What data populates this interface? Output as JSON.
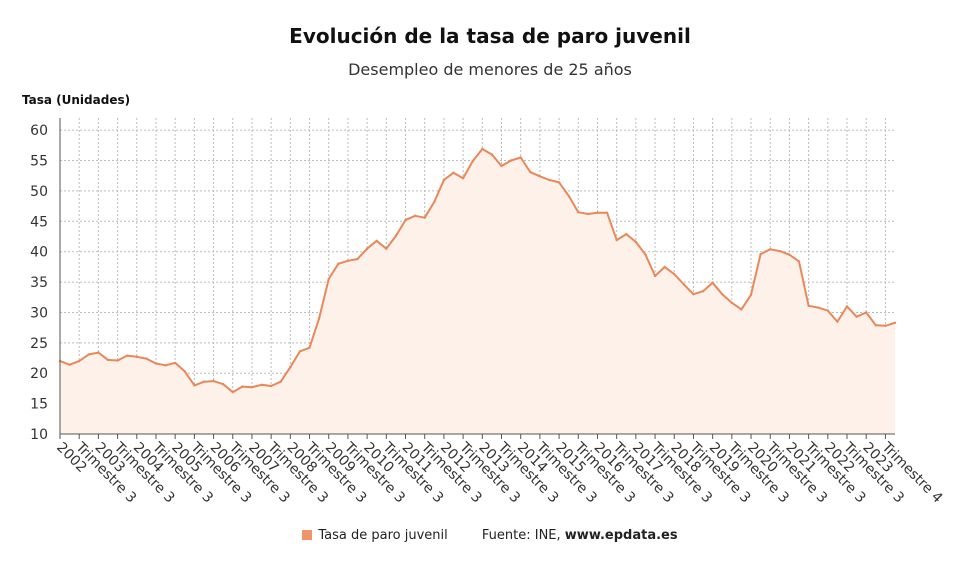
{
  "title": "Evolución de la tasa de paro juvenil",
  "subtitle": "Desempleo de menores de 25 años",
  "legend_label": "Tasa de paro juvenil",
  "source_prefix": "Fuente: INE,",
  "source_site": "www.epdata.es",
  "colors": {
    "line": "#e8885a",
    "fill": "#fdf1ea",
    "grid": "#bbbbbb"
  },
  "chart_data": {
    "type": "area",
    "ylabel": "Tasa (Unidades)",
    "ylim": [
      10,
      62
    ],
    "yticks": [
      10,
      15,
      20,
      25,
      30,
      35,
      40,
      45,
      50,
      55,
      60
    ],
    "grid": true,
    "legend_position": "bottom",
    "xtick_labels": [
      "2002",
      "Trimestre 3",
      "2003",
      "Trimestre 3",
      "2004",
      "Trimestre 3",
      "2005",
      "Trimestre 3",
      "2006",
      "Trimestre 3",
      "2007",
      "Trimestre 3",
      "2008",
      "Trimestre 3",
      "2009",
      "Trimestre 3",
      "2010",
      "Trimestre 3",
      "2011",
      "Trimestre 3",
      "2012",
      "Trimestre 3",
      "2013",
      "Trimestre 3",
      "2014",
      "Trimestre 3",
      "2015",
      "Trimestre 3",
      "2016",
      "Trimestre 3",
      "2017",
      "Trimestre 3",
      "2018",
      "Trimestre 3",
      "2019",
      "Trimestre 3",
      "2020",
      "Trimestre 3",
      "2021",
      "Trimestre 3",
      "2022",
      "Trimestre 3",
      "2023",
      "Trimestre 4"
    ],
    "series": [
      {
        "name": "Tasa de paro juvenil",
        "values": [
          22.0,
          21.4,
          22.0,
          23.1,
          23.4,
          22.2,
          22.1,
          22.9,
          22.7,
          22.4,
          21.6,
          21.3,
          21.7,
          20.3,
          18.0,
          18.6,
          18.7,
          18.2,
          16.9,
          17.8,
          17.7,
          18.1,
          17.9,
          18.6,
          21.0,
          23.6,
          24.2,
          29.0,
          35.5,
          38.0,
          38.5,
          38.8,
          40.5,
          41.8,
          40.5,
          42.6,
          45.2,
          45.9,
          45.6,
          48.2,
          51.8,
          53.0,
          52.1,
          54.9,
          56.9,
          56.0,
          54.1,
          55.0,
          55.5,
          53.1,
          52.4,
          51.8,
          51.4,
          49.2,
          46.5,
          46.2,
          46.4,
          46.4,
          41.9,
          42.9,
          41.6,
          39.5,
          36.0,
          37.5,
          36.3,
          34.6,
          33.0,
          33.5,
          34.9,
          33.0,
          31.6,
          30.5,
          32.9,
          39.6,
          40.4,
          40.1,
          39.5,
          38.4,
          31.1,
          30.8,
          30.3,
          28.5,
          31.0,
          29.3,
          30.0,
          27.9,
          27.8,
          28.3
        ]
      }
    ]
  }
}
